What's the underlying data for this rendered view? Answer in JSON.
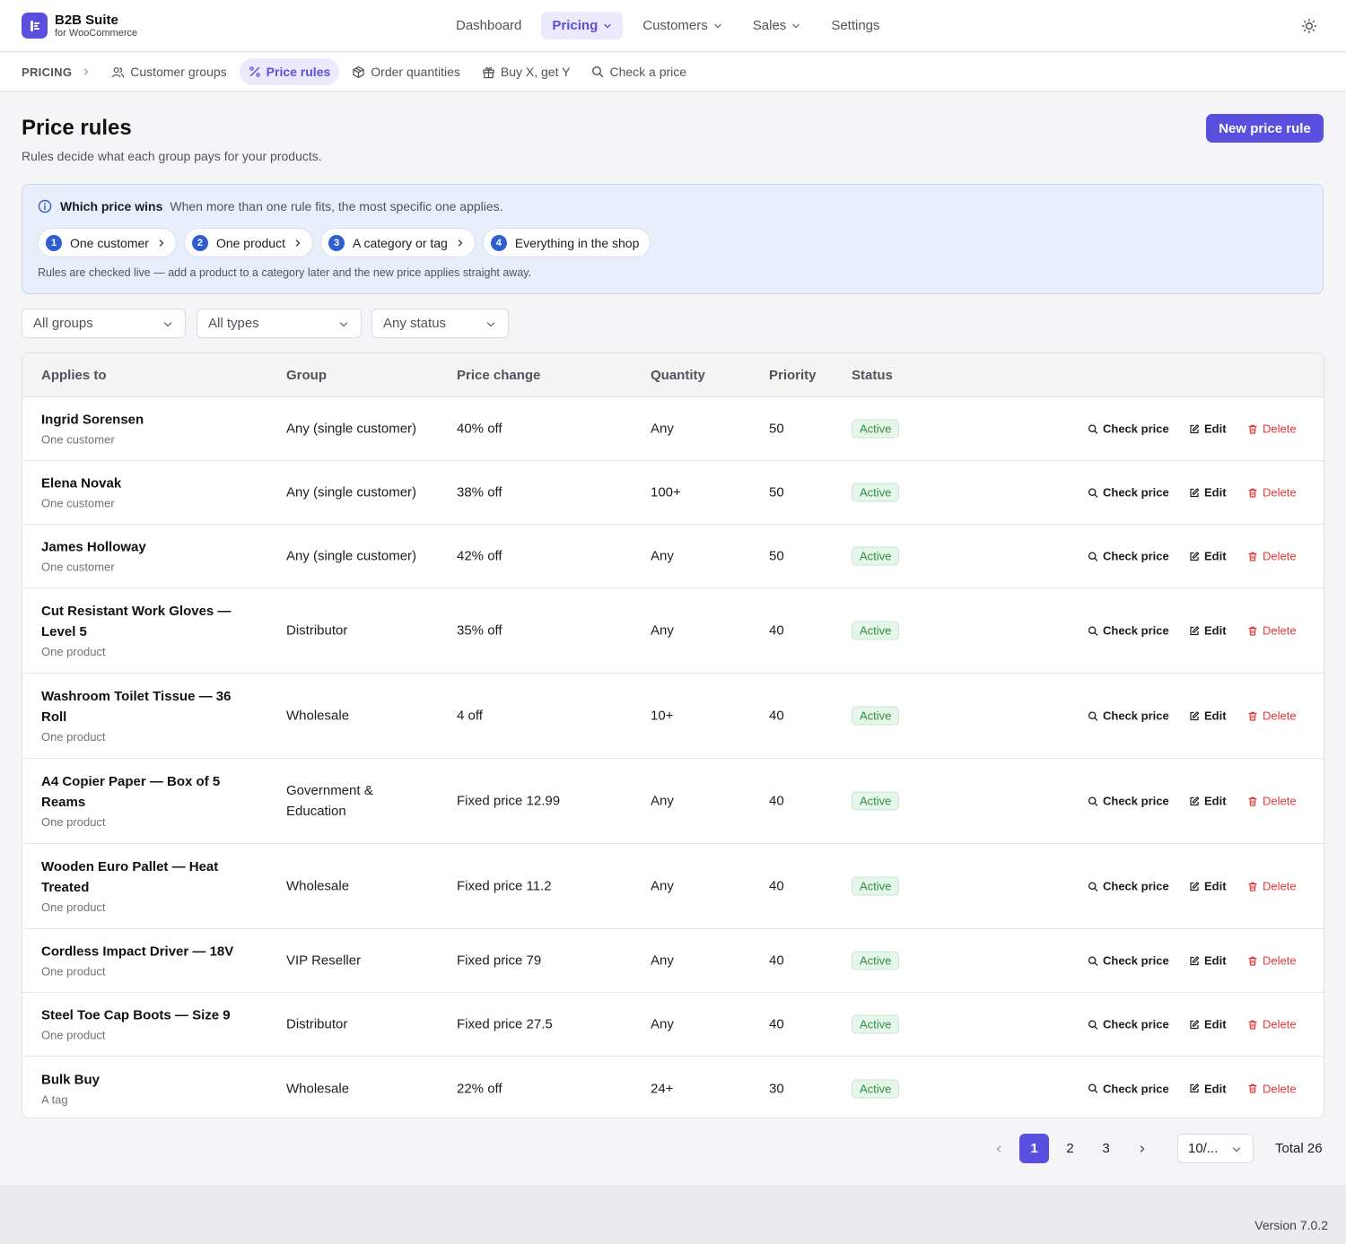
{
  "brand": {
    "name": "B2B Suite",
    "sub": "for WooCommerce"
  },
  "nav": {
    "items": [
      {
        "label": "Dashboard",
        "active": false,
        "dropdown": false
      },
      {
        "label": "Pricing",
        "active": true,
        "dropdown": true
      },
      {
        "label": "Customers",
        "active": false,
        "dropdown": true
      },
      {
        "label": "Sales",
        "active": false,
        "dropdown": true
      },
      {
        "label": "Settings",
        "active": false,
        "dropdown": false
      }
    ],
    "theme_icon": "sun-icon"
  },
  "subnav": {
    "root": "PRICING",
    "items": [
      {
        "label": "Customer groups",
        "icon": "users-icon",
        "active": false
      },
      {
        "label": "Price rules",
        "icon": "percent-icon",
        "active": true
      },
      {
        "label": "Order quantities",
        "icon": "box-icon",
        "active": false
      },
      {
        "label": "Buy X, get Y",
        "icon": "gift-icon",
        "active": false
      },
      {
        "label": "Check a price",
        "icon": "search-icon",
        "active": false
      }
    ]
  },
  "page": {
    "title": "Price rules",
    "subtitle": "Rules decide what each group pays for your products.",
    "new_button": "New price rule"
  },
  "info": {
    "title": "Which price wins",
    "text": "When more than one rule fits, the most specific one applies.",
    "steps": [
      {
        "num": "1",
        "label": "One customer"
      },
      {
        "num": "2",
        "label": "One product"
      },
      {
        "num": "3",
        "label": "A category or tag"
      },
      {
        "num": "4",
        "label": "Everything in the shop"
      }
    ],
    "note": "Rules are checked live — add a product to a category later and the new price applies straight away."
  },
  "filters": {
    "group": "All groups",
    "type": "All types",
    "status": "Any status"
  },
  "table": {
    "headers": {
      "applies": "Applies to",
      "group": "Group",
      "change": "Price change",
      "qty": "Quantity",
      "priority": "Priority",
      "status": "Status"
    },
    "actions": {
      "check": "Check price",
      "edit": "Edit",
      "delete": "Delete"
    },
    "rows": [
      {
        "name": "Ingrid Sorensen",
        "kind": "One customer",
        "group": "Any (single customer)",
        "change": "40% off",
        "qty": "Any",
        "priority": "50",
        "status": "Active"
      },
      {
        "name": "Elena Novak",
        "kind": "One customer",
        "group": "Any (single customer)",
        "change": "38% off",
        "qty": "100+",
        "priority": "50",
        "status": "Active"
      },
      {
        "name": "James Holloway",
        "kind": "One customer",
        "group": "Any (single customer)",
        "change": "42% off",
        "qty": "Any",
        "priority": "50",
        "status": "Active"
      },
      {
        "name": "Cut Resistant Work Gloves — Level 5",
        "kind": "One product",
        "group": "Distributor",
        "change": "35% off",
        "qty": "Any",
        "priority": "40",
        "status": "Active"
      },
      {
        "name": "Washroom Toilet Tissue — 36 Roll",
        "kind": "One product",
        "group": "Wholesale",
        "change": "4 off",
        "qty": "10+",
        "priority": "40",
        "status": "Active"
      },
      {
        "name": "A4 Copier Paper — Box of 5 Reams",
        "kind": "One product",
        "group": "Government & Education",
        "change": "Fixed price 12.99",
        "qty": "Any",
        "priority": "40",
        "status": "Active"
      },
      {
        "name": "Wooden Euro Pallet — Heat Treated",
        "kind": "One product",
        "group": "Wholesale",
        "change": "Fixed price 11.2",
        "qty": "Any",
        "priority": "40",
        "status": "Active"
      },
      {
        "name": "Cordless Impact Driver — 18V",
        "kind": "One product",
        "group": "VIP Reseller",
        "change": "Fixed price 79",
        "qty": "Any",
        "priority": "40",
        "status": "Active"
      },
      {
        "name": "Steel Toe Cap Boots — Size 9",
        "kind": "One product",
        "group": "Distributor",
        "change": "Fixed price 27.5",
        "qty": "Any",
        "priority": "40",
        "status": "Active"
      },
      {
        "name": "Bulk Buy",
        "kind": "A tag",
        "group": "Wholesale",
        "change": "22% off",
        "qty": "24+",
        "priority": "30",
        "status": "Active"
      }
    ]
  },
  "pagination": {
    "pages": [
      "1",
      "2",
      "3"
    ],
    "current": "1",
    "page_size": "10/...",
    "total": "Total 26"
  },
  "footer": {
    "version": "Version 7.0.2"
  },
  "colors": {
    "accent": "#5b4fe0",
    "danger": "#dc3b3b",
    "success": "#2f8f45",
    "info_bg": "#e9eefb"
  }
}
